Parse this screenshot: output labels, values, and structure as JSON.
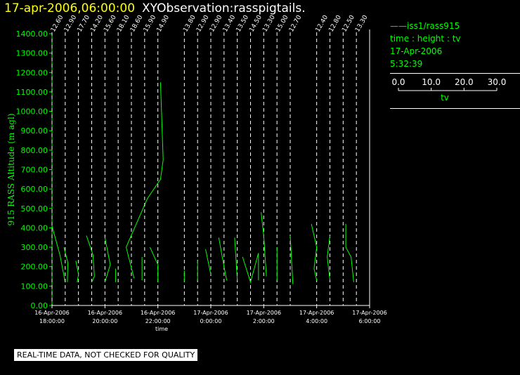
{
  "title": {
    "date": "17-apr-2006,06:00:00",
    "observation": "XYObservation:rasspigtails."
  },
  "legend": {
    "series_label": "iss1/rass915",
    "vars": "time : height : tv",
    "date": "17-Apr-2006",
    "time": "5:32:39",
    "scale_ticks": [
      "0.0",
      "10.0",
      "20.0",
      "30.0"
    ],
    "scale_label": "tv"
  },
  "footer": "REAL-TIME DATA, NOT CHECKED FOR QUALITY",
  "colors": {
    "trace": "#00ff00",
    "axis_text": "#00ff00",
    "title": "#ffff00",
    "grid": "#ffffff"
  },
  "chart_data": {
    "type": "line",
    "ylabel": "915 RASS Altitude (m agl)",
    "xlabel": "time",
    "ylim": [
      0,
      1400
    ],
    "y_ticks": [
      "0.00",
      "100.00",
      "200.00",
      "300.00",
      "400.00",
      "500.00",
      "600.00",
      "700.00",
      "800.00",
      "900.00",
      "1000.00",
      "1100.00",
      "1200.00",
      "1300.00",
      "1400.00"
    ],
    "x_ticks": [
      {
        "hours": 0,
        "date": "16-Apr-2006",
        "time": "18:00:00"
      },
      {
        "hours": 2,
        "date": "16-Apr-2006",
        "time": "20:00:00"
      },
      {
        "hours": 4,
        "date": "16-Apr-2006",
        "time": "22:00:00"
      },
      {
        "hours": 6,
        "date": "17-Apr-2006",
        "time": "0:00:00"
      },
      {
        "hours": 8,
        "date": "17-Apr-2006",
        "time": "2:00:00"
      },
      {
        "hours": 10,
        "date": "17-Apr-2006",
        "time": "4:00:00"
      },
      {
        "hours": 12,
        "date": "17-Apr-2006",
        "time": "6:00:00"
      }
    ],
    "profiles": [
      {
        "label": "12.60",
        "hours": 0.0,
        "points": [
          [
            0.0,
            410
          ],
          [
            0.3,
            260
          ],
          [
            0.5,
            120
          ]
        ]
      },
      {
        "label": "12.90",
        "hours": 0.5,
        "points": [
          [
            0.45,
            300
          ],
          [
            0.6,
            220
          ],
          [
            0.58,
            120
          ]
        ]
      },
      {
        "label": "17.70",
        "hours": 1.0,
        "points": [
          [
            0.9,
            230
          ],
          [
            1.0,
            160
          ],
          [
            0.95,
            120
          ]
        ]
      },
      {
        "label": "14.20",
        "hours": 1.5,
        "points": [
          [
            1.3,
            360
          ],
          [
            1.55,
            260
          ],
          [
            1.6,
            150
          ],
          [
            1.5,
            120
          ]
        ]
      },
      {
        "label": "15.60",
        "hours": 2.0,
        "points": [
          [
            2.0,
            350
          ],
          [
            2.2,
            210
          ],
          [
            2.0,
            120
          ]
        ]
      },
      {
        "label": "18.10",
        "hours": 2.5,
        "points": [
          [
            2.4,
            190
          ],
          [
            2.4,
            120
          ]
        ]
      },
      {
        "label": "18.60",
        "hours": 3.0,
        "points": [
          [
            3.1,
            140
          ],
          [
            2.8,
            300
          ],
          [
            3.6,
            550
          ],
          [
            4.1,
            650
          ],
          [
            4.2,
            750
          ],
          [
            4.1,
            1150
          ]
        ]
      },
      {
        "label": "15.90",
        "hours": 3.5,
        "points": [
          [
            3.4,
            250
          ],
          [
            3.4,
            130
          ]
        ]
      },
      {
        "label": "14.90",
        "hours": 4.0,
        "points": [
          [
            3.7,
            300
          ],
          [
            4.0,
            210
          ],
          [
            4.0,
            120
          ]
        ]
      },
      {
        "label": "13.80",
        "hours": 5.0,
        "points": [
          [
            5.0,
            180
          ],
          [
            5.0,
            120
          ]
        ]
      },
      {
        "label": "12.90",
        "hours": 5.5,
        "points": [
          [
            5.5,
            230
          ],
          [
            5.5,
            130
          ]
        ]
      },
      {
        "label": "12.90",
        "hours": 6.0,
        "points": [
          [
            5.8,
            290
          ],
          [
            6.0,
            160
          ]
        ]
      },
      {
        "label": "13.40",
        "hours": 6.5,
        "points": [
          [
            6.3,
            350
          ],
          [
            6.5,
            200
          ],
          [
            6.6,
            130
          ]
        ]
      },
      {
        "label": "13.50",
        "hours": 7.0,
        "points": [
          [
            6.9,
            350
          ],
          [
            7.0,
            130
          ]
        ]
      },
      {
        "label": "14.50",
        "hours": 7.5,
        "points": [
          [
            7.2,
            250
          ],
          [
            7.5,
            120
          ],
          [
            7.8,
            270
          ],
          [
            7.8,
            130
          ]
        ]
      },
      {
        "label": "13.30",
        "hours": 8.0,
        "points": [
          [
            7.9,
            480
          ],
          [
            8.0,
            360
          ],
          [
            8.1,
            150
          ]
        ]
      },
      {
        "label": "15.00",
        "hours": 8.5,
        "points": [
          [
            8.5,
            300
          ],
          [
            8.5,
            130
          ]
        ]
      },
      {
        "label": "12.70",
        "hours": 9.0,
        "points": [
          [
            9.0,
            360
          ],
          [
            9.1,
            110
          ]
        ]
      },
      {
        "label": "12.40",
        "hours": 10.0,
        "points": [
          [
            9.8,
            420
          ],
          [
            10.0,
            300
          ],
          [
            9.9,
            190
          ],
          [
            10.0,
            130
          ]
        ]
      },
      {
        "label": "12.80",
        "hours": 10.5,
        "points": [
          [
            10.5,
            360
          ],
          [
            10.4,
            250
          ],
          [
            10.5,
            130
          ]
        ]
      },
      {
        "label": "12.50",
        "hours": 11.0,
        "points": [
          [
            11.1,
            420
          ],
          [
            11.1,
            300
          ],
          [
            11.3,
            250
          ],
          [
            11.4,
            120
          ]
        ]
      },
      {
        "label": "13.30",
        "hours": 11.5,
        "points": []
      }
    ]
  }
}
